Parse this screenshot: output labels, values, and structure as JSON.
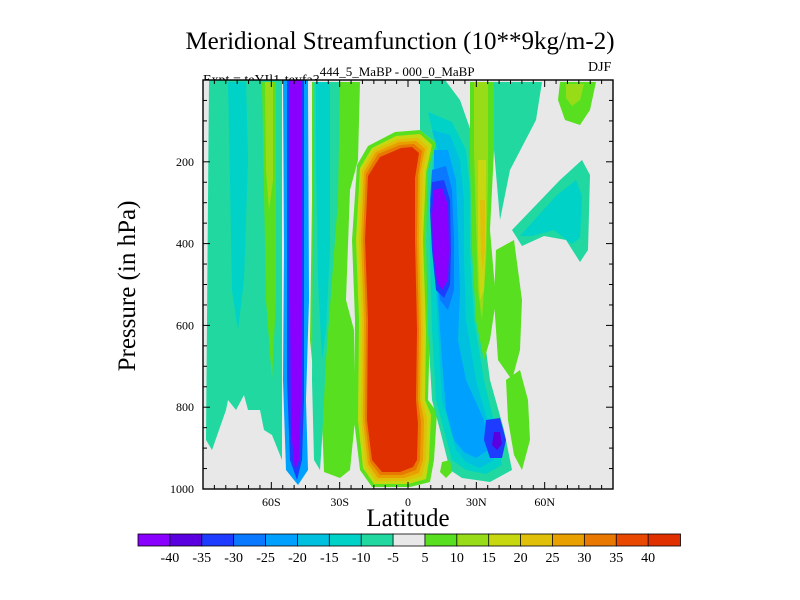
{
  "chart_data": {
    "type": "heatmap",
    "title": "Meridional Streamfunction (10**9kg/m-2)",
    "subtitle_left": "Expt = teYIl1-teyfa3",
    "subtitle_sup": "444_5_MaBP - 000_0_MaBP",
    "subtitle_right": "DJF",
    "xlabel": "Latitude",
    "ylabel": "Pressure (in hPa)",
    "xlim": [
      -90,
      90
    ],
    "ylim": [
      1000,
      0
    ],
    "x_ticks": [
      {
        "value": -60,
        "label": "60S"
      },
      {
        "value": -30,
        "label": "30S"
      },
      {
        "value": 0,
        "label": "0"
      },
      {
        "value": 30,
        "label": "30N"
      },
      {
        "value": 60,
        "label": "60N"
      }
    ],
    "y_ticks": [
      {
        "value": 200,
        "label": "200"
      },
      {
        "value": 400,
        "label": "400"
      },
      {
        "value": 600,
        "label": "600"
      },
      {
        "value": 800,
        "label": "800"
      },
      {
        "value": 1000,
        "label": "1000"
      }
    ],
    "colorbar": {
      "levels": [
        "-40",
        "-35",
        "-30",
        "-25",
        "-20",
        "-15",
        "-10",
        "-5",
        "5",
        "10",
        "15",
        "20",
        "25",
        "30",
        "35",
        "40"
      ],
      "colors": [
        "#8a00ff",
        "#5a00e0",
        "#1e3cff",
        "#0a78ff",
        "#00a0ff",
        "#00c0e0",
        "#00d2c8",
        "#20d8a0",
        "#e8e8e8",
        "#58e020",
        "#98dc18",
        "#c8d810",
        "#e0c008",
        "#e8a000",
        "#e87800",
        "#e84800",
        "#e03000"
      ]
    },
    "features": [
      {
        "name": "equatorial positive cell",
        "lat_range": [
          -13,
          9
        ],
        "p_range": [
          140,
          990
        ],
        "value": 40
      },
      {
        "name": "southern negative column",
        "lat_range": [
          -48,
          -43
        ],
        "p_range": [
          20,
          960
        ],
        "value": -40
      },
      {
        "name": "northern negative core",
        "lat_range": [
          10,
          20
        ],
        "p_range": [
          200,
          600
        ],
        "value": -40
      },
      {
        "name": "northern positive column",
        "lat_range": [
          28,
          33
        ],
        "p_range": [
          230,
          450
        ],
        "value": 20
      }
    ]
  }
}
